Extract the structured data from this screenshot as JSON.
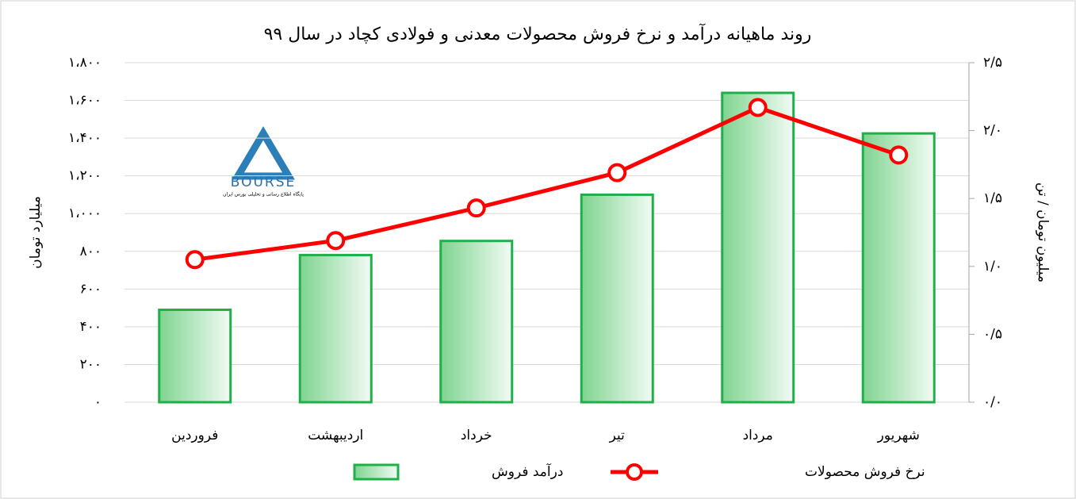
{
  "chart_data": {
    "type": "bar_line",
    "title": "روند ماهیانه درآمد و نرخ فروش محصولات معدنی و فولادی کچاد در سال ۹۹",
    "categories": [
      "فروردین",
      "اردیبهشت",
      "خرداد",
      "تیر",
      "مرداد",
      "شهریور"
    ],
    "series": [
      {
        "name": "درآمد فروش",
        "type": "bar",
        "color": "#1fb04a",
        "values": [
          490,
          780,
          855,
          1100,
          1640,
          1425
        ]
      },
      {
        "name": "نرخ فروش محصولات",
        "type": "line",
        "axis": "y2",
        "color": "#ff0000",
        "values": [
          1.05,
          1.19,
          1.43,
          1.69,
          2.17,
          1.82
        ]
      }
    ],
    "ylabel": "میلیارد تومان",
    "y2label": "میلیون تومان / تن",
    "ylim": [
      0,
      1800
    ],
    "yticks": [
      {
        "value": 0,
        "label": "۰"
      },
      {
        "value": 200,
        "label": "۲۰۰"
      },
      {
        "value": 400,
        "label": "۴۰۰"
      },
      {
        "value": 600,
        "label": "۶۰۰"
      },
      {
        "value": 800,
        "label": "۸۰۰"
      },
      {
        "value": 1000,
        "label": "۱،۰۰۰"
      },
      {
        "value": 1200,
        "label": "۱،۲۰۰"
      },
      {
        "value": 1400,
        "label": "۱،۴۰۰"
      },
      {
        "value": 1600,
        "label": "۱،۶۰۰"
      },
      {
        "value": 1800,
        "label": "۱،۸۰۰"
      }
    ],
    "y2lim": [
      0,
      2.5
    ],
    "y2ticks": [
      {
        "value": 0,
        "label": "۰/۰"
      },
      {
        "value": 0.5,
        "label": "۰/۵"
      },
      {
        "value": 1,
        "label": "۱/۰"
      },
      {
        "value": 1.5,
        "label": "۱/۵"
      },
      {
        "value": 2,
        "label": "۲/۰"
      },
      {
        "value": 2.5,
        "label": "۲/۵"
      }
    ],
    "grid": true,
    "legend": "bottom",
    "watermark": "BOURSE",
    "watermark_caption": "پایگاه اطلاع رسانی و تحلیلی بورس ایران"
  }
}
